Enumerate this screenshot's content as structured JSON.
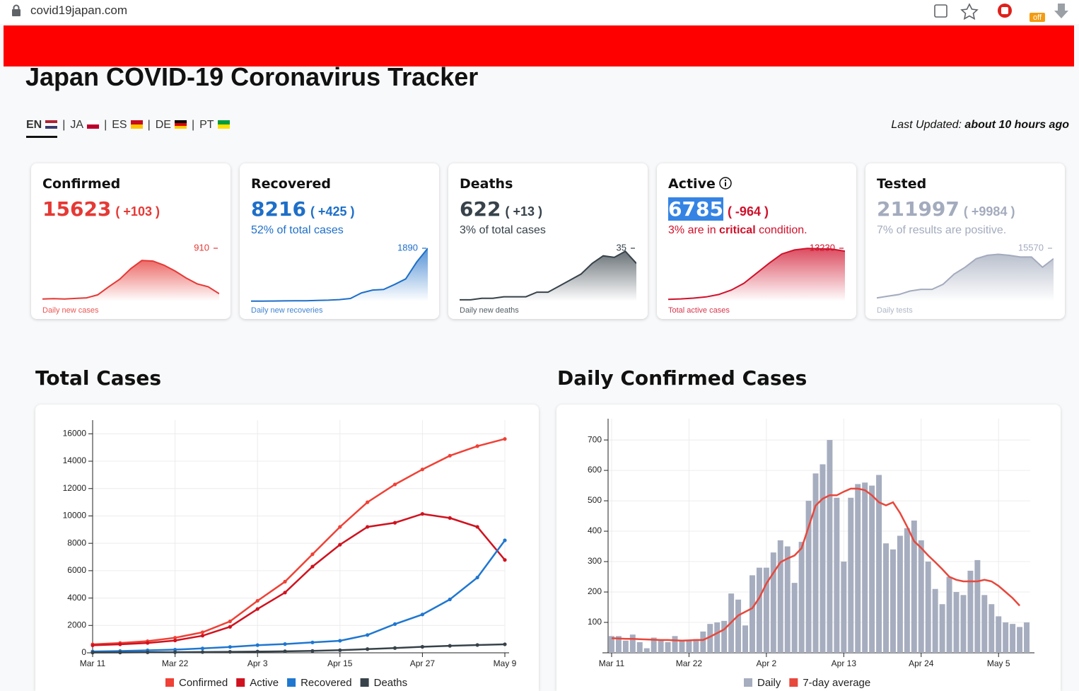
{
  "browser": {
    "url": "covid19japan.com",
    "extension_badge": "off"
  },
  "header": {
    "title": "Japan COVID-19 Coronavirus Tracker",
    "languages": [
      "EN",
      "JA",
      "ES",
      "DE",
      "PT"
    ],
    "separator": "|",
    "last_updated_label": "Last Updated:",
    "last_updated_value": "about 10 hours ago"
  },
  "cards": [
    {
      "label": "Confirmed",
      "value": 15623,
      "delta": "( +103 )",
      "color": "#e53935",
      "caption": "Daily new cases",
      "spark": {
        "type": "area",
        "values": [
          40,
          45,
          40,
          50,
          60,
          110,
          250,
          380,
          560,
          700,
          690,
          620,
          520,
          400,
          300,
          250,
          130
        ],
        "ylim": [
          0,
          910
        ],
        "yticks": [
          910
        ]
      }
    },
    {
      "label": "Recovered",
      "value": 8216,
      "delta": "( +425 )",
      "color": "#1e6fc8",
      "note": [
        {
          "text": "52% of total cases"
        }
      ],
      "caption": "Daily new recoveries",
      "spark": {
        "type": "area",
        "values": [
          5,
          5,
          10,
          15,
          20,
          20,
          30,
          40,
          60,
          100,
          300,
          400,
          420,
          600,
          800,
          1400,
          1890
        ],
        "ylim": [
          0,
          1890
        ],
        "yticks": [
          1890
        ]
      }
    },
    {
      "label": "Deaths",
      "value": 622,
      "delta": "( +13 )",
      "color": "#37424a",
      "note": [
        {
          "text": "3% of total cases"
        }
      ],
      "caption": "Daily new deaths",
      "spark": {
        "type": "area",
        "values": [
          1,
          1,
          2,
          2,
          3,
          3,
          3,
          6,
          6,
          10,
          14,
          18,
          25,
          30,
          29,
          33,
          25
        ],
        "ylim": [
          0,
          35
        ],
        "yticks": [
          35
        ]
      }
    },
    {
      "label": "Active",
      "value": 6785,
      "delta": "( -964 )",
      "color": "#d0112b",
      "note": [
        {
          "text": "3% are in "
        },
        {
          "text": "critical",
          "bold": true
        },
        {
          "text": " condition."
        }
      ],
      "caption": "Total active cases",
      "spark": {
        "type": "area",
        "values": [
          500,
          600,
          800,
          1100,
          1700,
          2800,
          4500,
          7000,
          9500,
          11800,
          12800,
          13200,
          13100,
          13000,
          12500
        ],
        "ylim": [
          0,
          13230
        ],
        "yticks": [
          13230
        ]
      }
    },
    {
      "label": "Tested",
      "value": 211997,
      "delta": "( +9984 )",
      "color": "#a3abbd",
      "note": [
        {
          "text": "7% of results are positive."
        }
      ],
      "caption": "Daily tests",
      "spark": {
        "type": "area",
        "values": [
          1000,
          1500,
          2000,
          3000,
          3500,
          3500,
          5000,
          8000,
          10000,
          12500,
          13500,
          13800,
          13500,
          13000,
          13000,
          10000,
          12500
        ],
        "ylim": [
          0,
          15570
        ],
        "yticks": [
          15570
        ]
      }
    }
  ],
  "chart_data": [
    {
      "type": "line",
      "title": "Total Cases",
      "categories": [
        "Mar 11",
        null,
        null,
        "Mar 22",
        null,
        null,
        "Apr 3",
        null,
        null,
        "Apr 15",
        null,
        null,
        "Apr 27",
        null,
        null,
        "May 9"
      ],
      "series": [
        {
          "name": "Confirmed",
          "color": "#ef4136",
          "values": [
            620,
            720,
            850,
            1100,
            1500,
            2300,
            3800,
            5200,
            7200,
            9200,
            11000,
            12300,
            13400,
            14400,
            15100,
            15623
          ]
        },
        {
          "name": "Active",
          "color": "#d0121f",
          "values": [
            550,
            620,
            720,
            900,
            1250,
            1900,
            3200,
            4400,
            6300,
            7900,
            9200,
            9500,
            10150,
            9850,
            9200,
            6785
          ]
        },
        {
          "name": "Recovered",
          "color": "#1f77d0",
          "values": [
            100,
            130,
            180,
            230,
            320,
            430,
            560,
            640,
            760,
            880,
            1300,
            2100,
            2800,
            3900,
            5500,
            8216
          ]
        },
        {
          "name": "Deaths",
          "color": "#37424a",
          "values": [
            20,
            25,
            35,
            45,
            55,
            70,
            90,
            110,
            140,
            190,
            270,
            350,
            440,
            510,
            570,
            622
          ]
        }
      ],
      "ylim": [
        0,
        17000
      ],
      "yticks": [
        0,
        2000,
        4000,
        6000,
        8000,
        10000,
        12000,
        14000,
        16000
      ],
      "grid": true,
      "legend": "bottom"
    },
    {
      "type": "bar_line",
      "title": "Daily Confirmed Cases",
      "categories": [
        "Mar 11",
        null,
        null,
        null,
        null,
        null,
        null,
        null,
        null,
        null,
        null,
        "Mar 22",
        null,
        null,
        null,
        null,
        null,
        null,
        null,
        null,
        null,
        null,
        "Apr 2",
        null,
        null,
        null,
        null,
        null,
        null,
        null,
        null,
        null,
        null,
        "Apr 13",
        null,
        null,
        null,
        null,
        null,
        null,
        null,
        null,
        null,
        null,
        "Apr 24",
        null,
        null,
        null,
        null,
        null,
        null,
        null,
        null,
        null,
        null,
        "May 5",
        null,
        null,
        null,
        null
      ],
      "series": [
        {
          "name": "Daily",
          "type": "bar",
          "color": "#a6adbf",
          "values": [
            55,
            55,
            40,
            60,
            35,
            15,
            50,
            40,
            35,
            55,
            40,
            40,
            45,
            70,
            95,
            100,
            105,
            195,
            175,
            90,
            255,
            280,
            280,
            330,
            370,
            350,
            230,
            365,
            500,
            590,
            620,
            700,
            510,
            300,
            510,
            555,
            560,
            550,
            585,
            360,
            340,
            385,
            410,
            435,
            370,
            300,
            210,
            160,
            250,
            200,
            190,
            270,
            305,
            190,
            160,
            120,
            100,
            95,
            85,
            100
          ]
        },
        {
          "name": "7-day average",
          "type": "line",
          "color": "#e8473b",
          "values": [
            48,
            47,
            46,
            46,
            45,
            44,
            43,
            42,
            42,
            41,
            40,
            41,
            42,
            42,
            53,
            65,
            77,
            100,
            123,
            135,
            147,
            181,
            228,
            263,
            298,
            310,
            320,
            344,
            414,
            484,
            507,
            518,
            518,
            530,
            540,
            540,
            535,
            518,
            495,
            485,
            495,
            460,
            415,
            367,
            345,
            320,
            298,
            275,
            250,
            240,
            235,
            235,
            235,
            240,
            235,
            220,
            200,
            180,
            155,
            null
          ]
        }
      ],
      "ylim": [
        0,
        770
      ],
      "yticks": [
        100,
        200,
        300,
        400,
        500,
        600,
        700
      ],
      "grid": true,
      "legend": "bottom"
    }
  ]
}
